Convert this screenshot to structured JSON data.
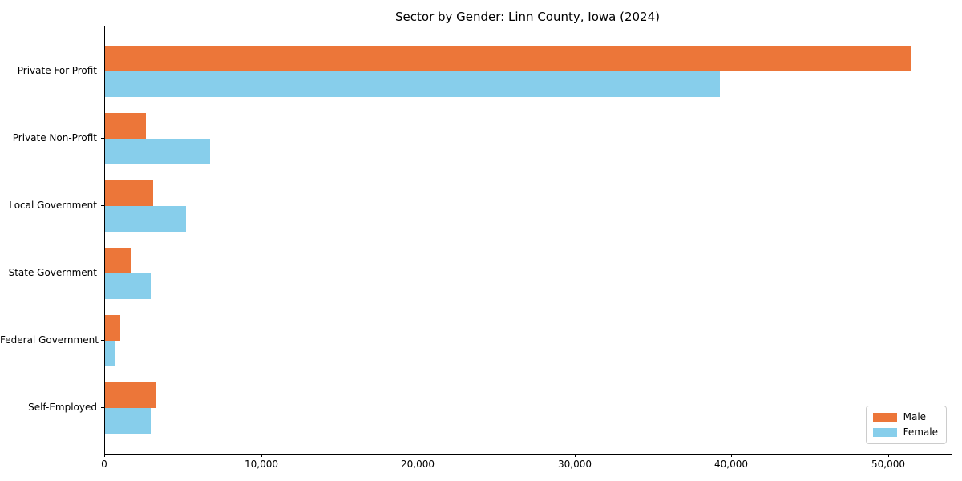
{
  "title": "Sector by Gender: Linn County, Iowa (2024)",
  "chart_data": {
    "type": "bar",
    "orientation": "horizontal",
    "title": "Sector by Gender: Linn County, Iowa (2024)",
    "xlabel": "",
    "ylabel": "",
    "categories": [
      "Private For-Profit",
      "Private Non-Profit",
      "Local Government",
      "State Government",
      "Federal Government",
      "Self-Employed"
    ],
    "series": [
      {
        "name": "Male",
        "color": "#ec7639",
        "values": [
          51400,
          2600,
          3050,
          1650,
          950,
          3200
        ]
      },
      {
        "name": "Female",
        "color": "#87ceeb",
        "values": [
          39200,
          6700,
          5150,
          2900,
          680,
          2900
        ]
      }
    ],
    "xlim": [
      0,
      54000
    ],
    "x_ticks": [
      0,
      10000,
      20000,
      30000,
      40000,
      50000
    ],
    "x_tick_labels": [
      "0",
      "10,000",
      "20,000",
      "30,000",
      "40,000",
      "50,000"
    ],
    "legend_position": "lower right",
    "grid": false
  },
  "colors": {
    "male": "#ec7639",
    "female": "#87ceeb",
    "axis": "#000000",
    "legend_border": "#cccccc",
    "background": "#ffffff"
  }
}
